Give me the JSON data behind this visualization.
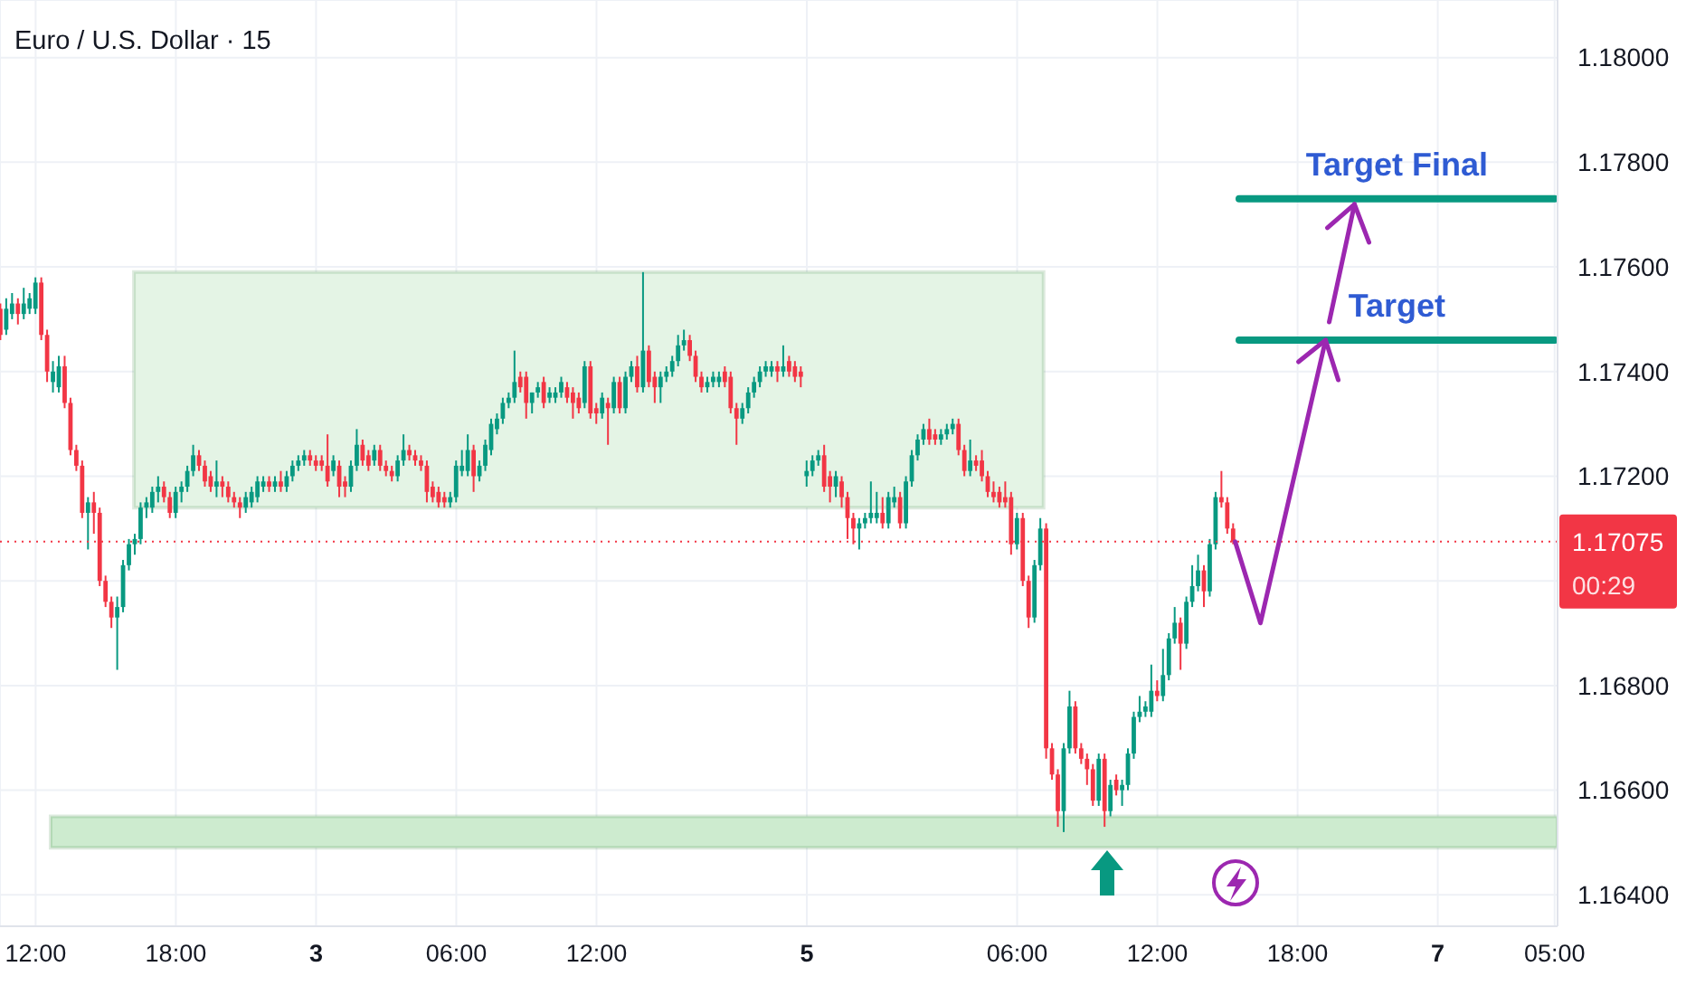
{
  "chart_data": {
    "type": "candlestick",
    "title": "Euro / U.S. Dollar · 15",
    "categories": [
      null,
      null,
      null,
      null,
      null,
      null,
      "12:00",
      null,
      null,
      null,
      null,
      null,
      null,
      null,
      null,
      null,
      null,
      null,
      null,
      null,
      null,
      null,
      null,
      null,
      null,
      null,
      null,
      null,
      null,
      null,
      "18:00",
      null,
      null,
      null,
      null,
      null,
      null,
      null,
      null,
      null,
      null,
      null,
      null,
      null,
      null,
      null,
      null,
      null,
      null,
      null,
      null,
      null,
      null,
      null,
      "3",
      null,
      null,
      null,
      null,
      null,
      null,
      null,
      null,
      null,
      null,
      null,
      null,
      null,
      null,
      null,
      null,
      null,
      null,
      null,
      null,
      null,
      null,
      null,
      "06:00",
      null,
      null,
      null,
      null,
      null,
      null,
      null,
      null,
      null,
      null,
      null,
      null,
      null,
      null,
      null,
      null,
      null,
      null,
      null,
      null,
      null,
      null,
      null,
      "12:00",
      null,
      null,
      null,
      null,
      null,
      null,
      null,
      null,
      null,
      null,
      null,
      null,
      null,
      null,
      null,
      null,
      null,
      null,
      null,
      null,
      null,
      null,
      null,
      null,
      null,
      null,
      null,
      null,
      null,
      null,
      null,
      null,
      null,
      null,
      null,
      "5",
      null,
      null,
      null,
      null,
      null,
      null,
      null,
      null,
      null,
      null,
      null,
      null,
      null,
      null,
      null,
      null,
      null,
      null,
      null,
      null,
      null,
      null,
      null,
      null,
      null,
      null,
      null,
      null,
      null,
      null,
      null,
      null,
      null,
      null,
      null,
      "06:00",
      null,
      null,
      null,
      null,
      null,
      null,
      null,
      null,
      null,
      null,
      null,
      null,
      null,
      null,
      null,
      null,
      null,
      null,
      null,
      null,
      null,
      null,
      null,
      "12:00",
      null,
      null,
      null,
      null,
      null,
      null,
      null,
      null,
      null,
      null,
      null,
      null,
      null,
      null,
      null,
      null,
      null,
      null,
      null,
      null,
      null,
      null,
      null,
      "18:00",
      null,
      null,
      null,
      null,
      null,
      null,
      null,
      null,
      null,
      null,
      null,
      null,
      null,
      null,
      null,
      null,
      null,
      null,
      null,
      null,
      null,
      null,
      null,
      "7",
      null,
      null,
      null,
      null,
      null,
      null,
      null,
      null,
      null,
      null,
      null,
      null,
      null,
      null,
      null,
      null,
      null,
      null,
      null,
      "05:00"
    ],
    "ohlc": [
      [
        1.1752,
        1.1753,
        1.1746,
        1.1747
      ],
      [
        1.1748,
        1.1754,
        1.1747,
        1.1752
      ],
      [
        1.1751,
        1.1755,
        1.175,
        1.1753
      ],
      [
        1.1753,
        1.1754,
        1.1749,
        1.1751
      ],
      [
        1.1751,
        1.1756,
        1.175,
        1.1753
      ],
      [
        1.1752,
        1.1755,
        1.1751,
        1.1754
      ],
      [
        1.1752,
        1.1758,
        1.1751,
        1.1757
      ],
      [
        1.1757,
        1.1758,
        1.1746,
        1.1747
      ],
      [
        1.1747,
        1.1748,
        1.1738,
        1.174
      ],
      [
        1.1738,
        1.1742,
        1.1736,
        1.174
      ],
      [
        1.1737,
        1.1743,
        1.1736,
        1.1741
      ],
      [
        1.1741,
        1.1743,
        1.1733,
        1.1734
      ],
      [
        1.1734,
        1.1735,
        1.1724,
        1.1725
      ],
      [
        1.1725,
        1.1726,
        1.1721,
        1.1722
      ],
      [
        1.1722,
        1.1723,
        1.1712,
        1.1713
      ],
      [
        1.1713,
        1.1716,
        1.1706,
        1.1715
      ],
      [
        1.1715,
        1.1717,
        1.1709,
        1.1713
      ],
      [
        1.1713,
        1.1714,
        1.1699,
        1.17
      ],
      [
        1.17,
        1.1701,
        1.1695,
        1.1696
      ],
      [
        1.1696,
        1.1697,
        1.1691,
        1.1693
      ],
      [
        1.1693,
        1.1697,
        1.1683,
        1.1695
      ],
      [
        1.1695,
        1.1704,
        1.1694,
        1.1703
      ],
      [
        1.1703,
        1.1708,
        1.1702,
        1.1707
      ],
      [
        1.1707,
        1.1709,
        1.1705,
        1.1708
      ],
      [
        1.1708,
        1.1715,
        1.1707,
        1.1714
      ],
      [
        1.1714,
        1.1716,
        1.1712,
        1.1715
      ],
      [
        1.1714,
        1.1718,
        1.1713,
        1.1717
      ],
      [
        1.1717,
        1.172,
        1.1715,
        1.1718
      ],
      [
        1.1718,
        1.1719,
        1.1715,
        1.1716
      ],
      [
        1.1716,
        1.1717,
        1.1712,
        1.1713
      ],
      [
        1.1713,
        1.1718,
        1.1712,
        1.1717
      ],
      [
        1.1717,
        1.1719,
        1.1715,
        1.1718
      ],
      [
        1.1718,
        1.1722,
        1.1717,
        1.1721
      ],
      [
        1.1721,
        1.1726,
        1.172,
        1.1724
      ],
      [
        1.1724,
        1.1725,
        1.1721,
        1.1722
      ],
      [
        1.1722,
        1.1723,
        1.1718,
        1.1719
      ],
      [
        1.172,
        1.1721,
        1.1717,
        1.1718
      ],
      [
        1.1718,
        1.1723,
        1.1716,
        1.1719
      ],
      [
        1.1719,
        1.172,
        1.1716,
        1.1718
      ],
      [
        1.1718,
        1.1719,
        1.1715,
        1.1716
      ],
      [
        1.1716,
        1.1717,
        1.1714,
        1.1715
      ],
      [
        1.1715,
        1.1716,
        1.1712,
        1.1714
      ],
      [
        1.1714,
        1.1717,
        1.1713,
        1.1716
      ],
      [
        1.1715,
        1.1718,
        1.1714,
        1.1717
      ],
      [
        1.1716,
        1.172,
        1.1715,
        1.1719
      ],
      [
        1.1718,
        1.172,
        1.1717,
        1.1719
      ],
      [
        1.1719,
        1.172,
        1.1717,
        1.1718
      ],
      [
        1.1718,
        1.172,
        1.1717,
        1.1719
      ],
      [
        1.1719,
        1.1721,
        1.1717,
        1.1718
      ],
      [
        1.1718,
        1.1721,
        1.1717,
        1.172
      ],
      [
        1.172,
        1.1723,
        1.1719,
        1.1722
      ],
      [
        1.1722,
        1.1724,
        1.1721,
        1.1723
      ],
      [
        1.1723,
        1.1725,
        1.1722,
        1.1724
      ],
      [
        1.1724,
        1.1725,
        1.1722,
        1.1723
      ],
      [
        1.1723,
        1.1724,
        1.1721,
        1.1722
      ],
      [
        1.1723,
        1.1724,
        1.1721,
        1.1722
      ],
      [
        1.1722,
        1.1728,
        1.1718,
        1.1719
      ],
      [
        1.1721,
        1.1724,
        1.172,
        1.1723
      ],
      [
        1.1722,
        1.1723,
        1.1716,
        1.1718
      ],
      [
        1.1719,
        1.172,
        1.1716,
        1.1718
      ],
      [
        1.1718,
        1.1723,
        1.1717,
        1.1722
      ],
      [
        1.1722,
        1.1729,
        1.1721,
        1.1726
      ],
      [
        1.1726,
        1.1727,
        1.1722,
        1.1723
      ],
      [
        1.1724,
        1.1725,
        1.1721,
        1.1722
      ],
      [
        1.1723,
        1.1726,
        1.1722,
        1.1725
      ],
      [
        1.1725,
        1.1726,
        1.1721,
        1.1722
      ],
      [
        1.1722,
        1.1723,
        1.172,
        1.1721
      ],
      [
        1.1721,
        1.1722,
        1.1719,
        1.172
      ],
      [
        1.172,
        1.1724,
        1.1719,
        1.1723
      ],
      [
        1.1723,
        1.1728,
        1.1722,
        1.1725
      ],
      [
        1.1725,
        1.1726,
        1.1723,
        1.1724
      ],
      [
        1.1724,
        1.1725,
        1.1722,
        1.1723
      ],
      [
        1.1723,
        1.1724,
        1.1721,
        1.1722
      ],
      [
        1.1722,
        1.1723,
        1.1715,
        1.1717
      ],
      [
        1.1718,
        1.1719,
        1.1715,
        1.1716
      ],
      [
        1.1717,
        1.1718,
        1.1714,
        1.1715
      ],
      [
        1.1716,
        1.1717,
        1.1714,
        1.1715
      ],
      [
        1.1715,
        1.1717,
        1.1714,
        1.1716
      ],
      [
        1.1716,
        1.1723,
        1.1715,
        1.1722
      ],
      [
        1.1721,
        1.1725,
        1.172,
        1.1722
      ],
      [
        1.1721,
        1.1728,
        1.172,
        1.1725
      ],
      [
        1.1725,
        1.1726,
        1.1717,
        1.172
      ],
      [
        1.172,
        1.1723,
        1.1719,
        1.1722
      ],
      [
        1.1722,
        1.1727,
        1.1721,
        1.1726
      ],
      [
        1.1725,
        1.1731,
        1.1724,
        1.173
      ],
      [
        1.1729,
        1.1732,
        1.1728,
        1.1731
      ],
      [
        1.1731,
        1.1735,
        1.173,
        1.1734
      ],
      [
        1.1734,
        1.1736,
        1.1733,
        1.1735
      ],
      [
        1.1735,
        1.1744,
        1.1734,
        1.1738
      ],
      [
        1.1739,
        1.174,
        1.1736,
        1.1737
      ],
      [
        1.1739,
        1.174,
        1.1731,
        1.1734
      ],
      [
        1.1734,
        1.1736,
        1.1732,
        1.1736
      ],
      [
        1.1736,
        1.1738,
        1.1735,
        1.1737
      ],
      [
        1.1738,
        1.1739,
        1.1733,
        1.1734
      ],
      [
        1.1735,
        1.1737,
        1.1734,
        1.1736
      ],
      [
        1.1735,
        1.1737,
        1.1734,
        1.1736
      ],
      [
        1.1736,
        1.1739,
        1.1735,
        1.1738
      ],
      [
        1.1737,
        1.1738,
        1.1734,
        1.1735
      ],
      [
        1.1736,
        1.1737,
        1.1731,
        1.1734
      ],
      [
        1.1735,
        1.1736,
        1.1732,
        1.1733
      ],
      [
        1.1734,
        1.1742,
        1.1733,
        1.1741
      ],
      [
        1.1741,
        1.1742,
        1.1731,
        1.1732
      ],
      [
        1.1733,
        1.1734,
        1.173,
        1.1732
      ],
      [
        1.1732,
        1.1736,
        1.1731,
        1.1735
      ],
      [
        1.1734,
        1.1735,
        1.1726,
        1.1733
      ],
      [
        1.1733,
        1.1739,
        1.1732,
        1.1738
      ],
      [
        1.1738,
        1.1739,
        1.1732,
        1.1733
      ],
      [
        1.1733,
        1.174,
        1.1732,
        1.1739
      ],
      [
        1.1739,
        1.1742,
        1.1738,
        1.1741
      ],
      [
        1.1741,
        1.1743,
        1.1736,
        1.1737
      ],
      [
        1.1737,
        1.1759,
        1.1736,
        1.1744
      ],
      [
        1.1744,
        1.1745,
        1.1737,
        1.1738
      ],
      [
        1.1739,
        1.174,
        1.1734,
        1.1737
      ],
      [
        1.1737,
        1.174,
        1.1734,
        1.1739
      ],
      [
        1.1739,
        1.1741,
        1.1738,
        1.174
      ],
      [
        1.174,
        1.1743,
        1.1739,
        1.1742
      ],
      [
        1.1742,
        1.1747,
        1.1741,
        1.1745
      ],
      [
        1.1745,
        1.1748,
        1.1744,
        1.1746
      ],
      [
        1.1746,
        1.1747,
        1.1742,
        1.1743
      ],
      [
        1.1743,
        1.1744,
        1.1738,
        1.1739
      ],
      [
        1.1739,
        1.174,
        1.1736,
        1.1737
      ],
      [
        1.1737,
        1.1739,
        1.1736,
        1.1738
      ],
      [
        1.1738,
        1.174,
        1.1737,
        1.1739
      ],
      [
        1.1738,
        1.174,
        1.1737,
        1.1739
      ],
      [
        1.174,
        1.1741,
        1.1737,
        1.1738
      ],
      [
        1.1739,
        1.174,
        1.1732,
        1.1733
      ],
      [
        1.1733,
        1.1734,
        1.1726,
        1.1731
      ],
      [
        1.1731,
        1.1734,
        1.173,
        1.1733
      ],
      [
        1.1733,
        1.1737,
        1.1732,
        1.1736
      ],
      [
        1.1736,
        1.1739,
        1.1735,
        1.1738
      ],
      [
        1.1738,
        1.1741,
        1.1737,
        1.174
      ],
      [
        1.174,
        1.1742,
        1.1739,
        1.1741
      ],
      [
        1.174,
        1.1742,
        1.1739,
        1.1741
      ],
      [
        1.1741,
        1.1742,
        1.1738,
        1.174
      ],
      [
        1.174,
        1.1745,
        1.1739,
        1.1741
      ],
      [
        1.1742,
        1.1743,
        1.1739,
        1.174
      ],
      [
        1.1741,
        1.1742,
        1.1738,
        1.1739
      ],
      [
        1.174,
        1.1741,
        1.1737,
        1.1739
      ],
      [
        1.172,
        1.1723,
        1.1718,
        1.1721
      ],
      [
        1.1721,
        1.1724,
        1.172,
        1.1723
      ],
      [
        1.1723,
        1.1725,
        1.1722,
        1.1724
      ],
      [
        1.1724,
        1.1726,
        1.1717,
        1.1718
      ],
      [
        1.172,
        1.1721,
        1.1715,
        1.1718
      ],
      [
        1.1718,
        1.1721,
        1.1716,
        1.172
      ],
      [
        1.1719,
        1.172,
        1.1714,
        1.1716
      ],
      [
        1.1716,
        1.1717,
        1.1708,
        1.1712
      ],
      [
        1.1712,
        1.1713,
        1.1707,
        1.171
      ],
      [
        1.171,
        1.1712,
        1.1706,
        1.1711
      ],
      [
        1.1711,
        1.1713,
        1.171,
        1.1712
      ],
      [
        1.1712,
        1.1719,
        1.1711,
        1.1713
      ],
      [
        1.1712,
        1.1717,
        1.1711,
        1.1713
      ],
      [
        1.1713,
        1.1716,
        1.171,
        1.1711
      ],
      [
        1.1711,
        1.1717,
        1.171,
        1.1716
      ],
      [
        1.1715,
        1.1718,
        1.1714,
        1.1716
      ],
      [
        1.1716,
        1.1717,
        1.171,
        1.1711
      ],
      [
        1.1711,
        1.172,
        1.171,
        1.1719
      ],
      [
        1.1719,
        1.1725,
        1.1718,
        1.1724
      ],
      [
        1.1724,
        1.1728,
        1.1723,
        1.1727
      ],
      [
        1.1727,
        1.173,
        1.1726,
        1.1729
      ],
      [
        1.1729,
        1.1731,
        1.1726,
        1.1727
      ],
      [
        1.1728,
        1.1729,
        1.1726,
        1.1727
      ],
      [
        1.1727,
        1.1729,
        1.1726,
        1.1728
      ],
      [
        1.1728,
        1.173,
        1.1727,
        1.1729
      ],
      [
        1.1729,
        1.1731,
        1.1728,
        1.173
      ],
      [
        1.173,
        1.1731,
        1.1724,
        1.1725
      ],
      [
        1.1725,
        1.1726,
        1.172,
        1.1721
      ],
      [
        1.1721,
        1.1727,
        1.172,
        1.1723
      ],
      [
        1.1723,
        1.1724,
        1.1721,
        1.1722
      ],
      [
        1.1723,
        1.1725,
        1.1719,
        1.172
      ],
      [
        1.172,
        1.1721,
        1.1716,
        1.1717
      ],
      [
        1.1717,
        1.1719,
        1.1715,
        1.1716
      ],
      [
        1.1717,
        1.1718,
        1.1714,
        1.1715
      ],
      [
        1.1716,
        1.1719,
        1.1714,
        1.1715
      ],
      [
        1.1716,
        1.1717,
        1.1705,
        1.1707
      ],
      [
        1.1707,
        1.1713,
        1.1706,
        1.1712
      ],
      [
        1.1712,
        1.1713,
        1.1699,
        1.17
      ],
      [
        1.17,
        1.1701,
        1.1691,
        1.1693
      ],
      [
        1.1693,
        1.1704,
        1.1692,
        1.1703
      ],
      [
        1.1703,
        1.1712,
        1.1702,
        1.171
      ],
      [
        1.171,
        1.1711,
        1.1666,
        1.1668
      ],
      [
        1.1668,
        1.1669,
        1.1662,
        1.1663
      ],
      [
        1.1663,
        1.1664,
        1.1653,
        1.1656
      ],
      [
        1.1656,
        1.1669,
        1.1652,
        1.1668
      ],
      [
        1.1668,
        1.1679,
        1.1667,
        1.1676
      ],
      [
        1.1676,
        1.1677,
        1.1667,
        1.1668
      ],
      [
        1.1668,
        1.1669,
        1.1665,
        1.1666
      ],
      [
        1.1666,
        1.1667,
        1.1661,
        1.1664
      ],
      [
        1.1664,
        1.1665,
        1.1657,
        1.1658
      ],
      [
        1.1658,
        1.1667,
        1.1657,
        1.1666
      ],
      [
        1.1666,
        1.1667,
        1.1653,
        1.1656
      ],
      [
        1.1656,
        1.1662,
        1.1655,
        1.1661
      ],
      [
        1.1662,
        1.1663,
        1.1659,
        1.166
      ],
      [
        1.166,
        1.1662,
        1.1657,
        1.1661
      ],
      [
        1.1661,
        1.1668,
        1.166,
        1.1667
      ],
      [
        1.1667,
        1.1675,
        1.1666,
        1.1674
      ],
      [
        1.1674,
        1.1678,
        1.1673,
        1.1675
      ],
      [
        1.1675,
        1.1677,
        1.1674,
        1.1676
      ],
      [
        1.1675,
        1.1684,
        1.1674,
        1.1679
      ],
      [
        1.1679,
        1.1681,
        1.1677,
        1.1678
      ],
      [
        1.1678,
        1.1687,
        1.1677,
        1.1682
      ],
      [
        1.1682,
        1.169,
        1.1681,
        1.1689
      ],
      [
        1.1689,
        1.1695,
        1.1688,
        1.1692
      ],
      [
        1.1692,
        1.1693,
        1.1683,
        1.1688
      ],
      [
        1.1688,
        1.1697,
        1.1687,
        1.1696
      ],
      [
        1.1696,
        1.1703,
        1.1695,
        1.1699
      ],
      [
        1.1699,
        1.1705,
        1.1698,
        1.1702
      ],
      [
        1.1702,
        1.1703,
        1.1695,
        1.1698
      ],
      [
        1.1698,
        1.1708,
        1.1697,
        1.1707
      ],
      [
        1.1707,
        1.1717,
        1.1706,
        1.1716
      ],
      [
        1.1716,
        1.1721,
        1.1714,
        1.1715
      ],
      [
        1.1715,
        1.1716,
        1.1709,
        1.171
      ],
      [
        1.171,
        1.1711,
        1.1707,
        1.17075
      ],
      null,
      null,
      null,
      null,
      null,
      null,
      null,
      null,
      null,
      null,
      null,
      null,
      null,
      null,
      null,
      null,
      null,
      null,
      null,
      null,
      null,
      null,
      null,
      null,
      null,
      null,
      null,
      null,
      null,
      null,
      null,
      null,
      null,
      null,
      null,
      null,
      null,
      null,
      null,
      null,
      null,
      null,
      null,
      null,
      null,
      null,
      null,
      null,
      null,
      null,
      null,
      null,
      null,
      null,
      null
    ],
    "ylim": [
      1.1634,
      1.1811
    ],
    "yticks": [
      {
        "value": 1.164,
        "label": "1.16400"
      },
      {
        "value": 1.166,
        "label": "1.16600"
      },
      {
        "value": 1.168,
        "label": "1.16800"
      },
      {
        "value": 1.17,
        "label": null
      },
      {
        "value": 1.172,
        "label": "1.17200"
      },
      {
        "value": 1.174,
        "label": "1.17400"
      },
      {
        "value": 1.176,
        "label": "1.17600"
      },
      {
        "value": 1.178,
        "label": "1.17800"
      },
      {
        "value": 1.18,
        "label": "1.18000"
      }
    ],
    "grid": true,
    "bands": [
      {
        "axis": "y",
        "from": 1.1714,
        "to": 1.1759,
        "color": "#e4f4e5"
      },
      {
        "axis": "y",
        "from": 1.1649,
        "to": 1.1655,
        "color": "#cdebcf"
      }
    ],
    "ref_lines": [
      {
        "axis": "y",
        "value": 1.17075,
        "label": "1.17075\n00:29",
        "color": "#f23645",
        "line_style": "dotted"
      },
      {
        "axis": "y",
        "value": 1.1746,
        "label": "Target",
        "color": "#089981",
        "line_style": "solid"
      },
      {
        "axis": "y",
        "value": 1.1773,
        "label": "Target Final",
        "color": "#089981",
        "line_style": "solid"
      }
    ]
  }
}
